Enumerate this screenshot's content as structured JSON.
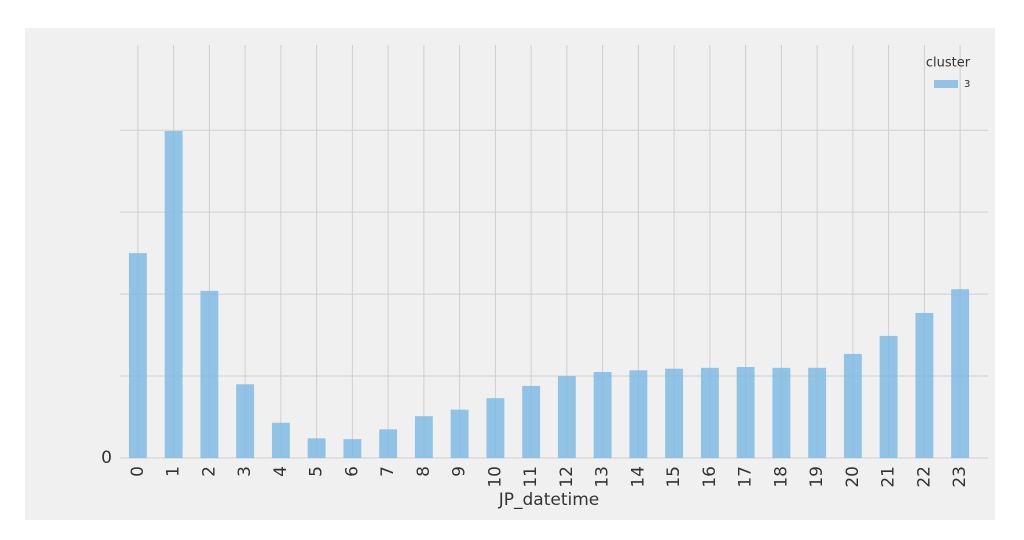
{
  "chart_data": {
    "type": "bar",
    "x_label": "JP_datetime",
    "categories": [
      "0",
      "1",
      "2",
      "3",
      "4",
      "5",
      "6",
      "7",
      "8",
      "9",
      "10",
      "11",
      "12",
      "13",
      "14",
      "15",
      "16",
      "17",
      "18",
      "19",
      "20",
      "21",
      "22",
      "23"
    ],
    "series": [
      {
        "name": "3",
        "color": "#7fbbe3",
        "values": [
          2.5,
          3.99,
          2.04,
          0.9,
          0.43,
          0.24,
          0.23,
          0.35,
          0.51,
          0.59,
          0.73,
          0.88,
          1.0,
          1.05,
          1.07,
          1.09,
          1.1,
          1.11,
          1.1,
          1.1,
          1.27,
          1.49,
          1.77,
          2.06
        ]
      }
    ],
    "legend_title": "cluster",
    "legend": "upper right",
    "ylim": [
      0,
      5.04
    ],
    "yticks": [
      0,
      {
        "value": 1,
        "label": null
      },
      {
        "value": 2,
        "label": null
      },
      {
        "value": 3,
        "label": null
      },
      {
        "value": 4,
        "label": null
      }
    ],
    "grid": true
  }
}
